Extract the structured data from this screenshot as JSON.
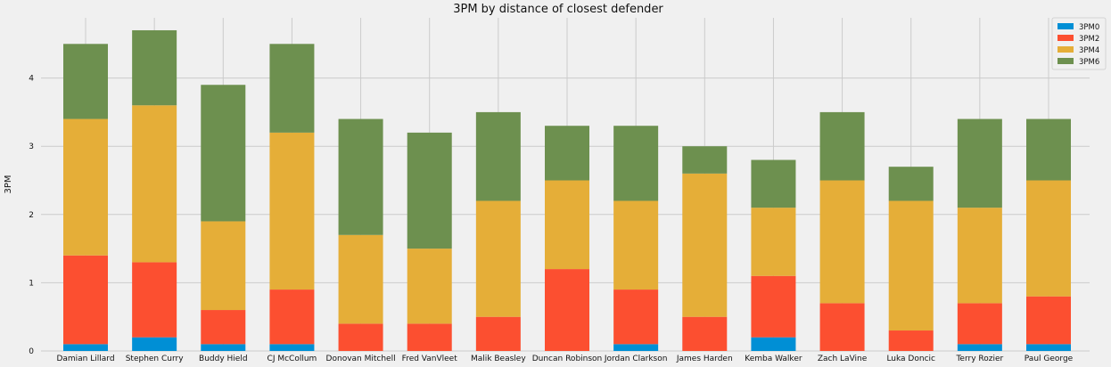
{
  "chart_data": {
    "type": "bar",
    "stacked": true,
    "title": "3PM by distance of closest defender",
    "xlabel": "",
    "ylabel": "3PM",
    "ylim": [
      0,
      4.9
    ],
    "yticks": [
      0,
      1,
      2,
      3,
      4
    ],
    "grid": true,
    "legend_position": "top-right",
    "categories": [
      "Damian Lillard",
      "Stephen Curry",
      "Buddy Hield",
      "CJ McCollum",
      "Donovan Mitchell",
      "Fred VanVleet",
      "Malik Beasley",
      "Duncan Robinson",
      "Jordan Clarkson",
      "James Harden",
      "Kemba Walker",
      "Zach LaVine",
      "Luka Doncic",
      "Terry Rozier",
      "Paul George"
    ],
    "series": [
      {
        "name": "3PM0",
        "color": "#008fd5",
        "values": [
          0.1,
          0.2,
          0.1,
          0.1,
          0.0,
          0.0,
          0.0,
          0.0,
          0.1,
          0.0,
          0.2,
          0.0,
          0.0,
          0.1,
          0.1
        ]
      },
      {
        "name": "3PM2",
        "color": "#fc4f30",
        "values": [
          1.3,
          1.1,
          0.5,
          0.8,
          0.4,
          0.4,
          0.5,
          1.2,
          0.8,
          0.5,
          0.9,
          0.7,
          0.3,
          0.6,
          0.7
        ]
      },
      {
        "name": "3PM4",
        "color": "#e5ae38",
        "values": [
          2.0,
          2.3,
          1.3,
          2.3,
          1.3,
          1.1,
          1.7,
          1.3,
          1.3,
          2.1,
          1.0,
          1.8,
          1.9,
          1.4,
          1.7
        ]
      },
      {
        "name": "3PM6",
        "color": "#6d904f",
        "values": [
          1.1,
          1.1,
          2.0,
          1.3,
          1.7,
          1.7,
          1.3,
          0.8,
          1.1,
          0.4,
          0.7,
          1.0,
          0.5,
          1.3,
          0.9
        ]
      }
    ]
  }
}
